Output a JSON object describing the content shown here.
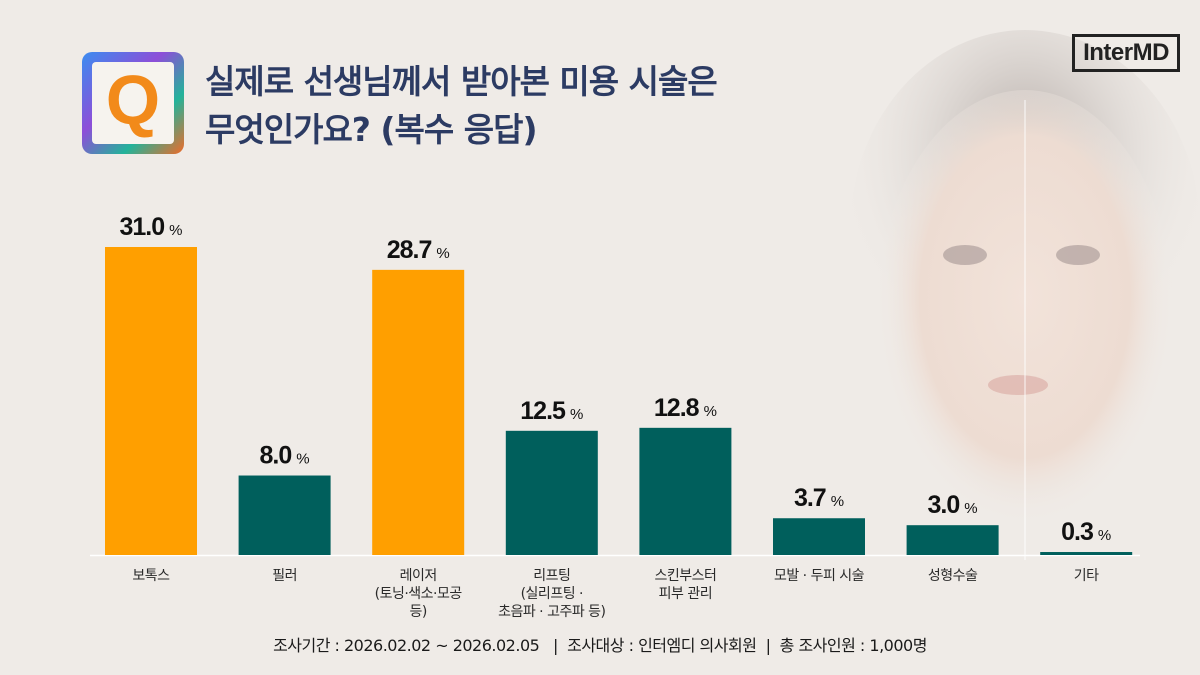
{
  "title_line1": "실제로 선생님께서 받아본 미용 시술은",
  "title_line2": "무엇인가요? (복수 응답)",
  "q_icon_label": "Q",
  "logo": "InterMD",
  "footer": "조사기간 : 2026.02.02 ~ 2026.02.05   |  조사대상 : 인터엠디 의사회원  |  총 조사인원 : 1,000명",
  "chart_data": {
    "type": "bar",
    "categories": [
      "보톡스",
      "필러",
      "레이저\n(토닝·색소·모공\n등)",
      "리프팅\n(실리프팅 ·\n초음파 · 고주파 등)",
      "스킨부스터\n피부 관리",
      "모발 · 두피 시술",
      "성형수술",
      "기타"
    ],
    "values": [
      31.0,
      8.0,
      28.7,
      12.5,
      12.8,
      3.7,
      3.0,
      0.3
    ],
    "value_labels": [
      "31.0",
      "8.0",
      "28.7",
      "12.5",
      "12.8",
      "3.7",
      "3.0",
      "0.3"
    ],
    "unit": "%",
    "highlight": [
      true,
      false,
      true,
      false,
      false,
      false,
      false,
      false
    ],
    "colors": {
      "highlight": "#ff9f00",
      "default": "#005f5c",
      "title": "#2c3b63"
    },
    "ylim": [
      0,
      31.0
    ],
    "grid": false,
    "legend": "none"
  }
}
